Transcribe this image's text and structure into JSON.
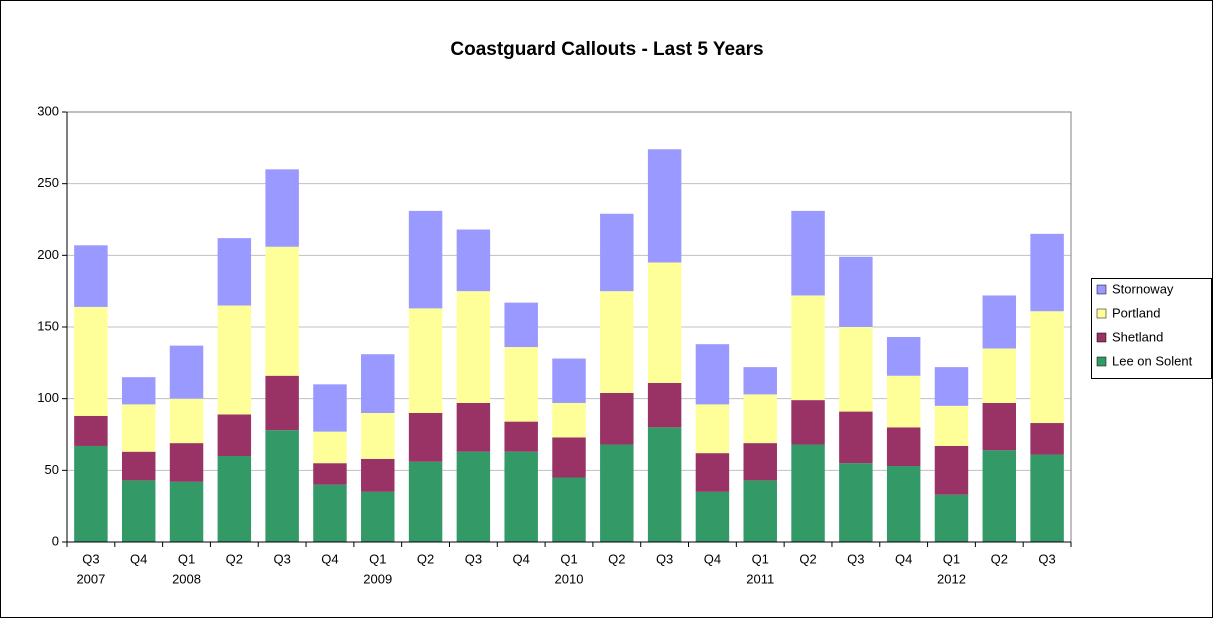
{
  "chart_data": {
    "type": "stacked_bar",
    "title": "Coastguard Callouts - Last 5 Years",
    "categories": [
      [
        "Q3",
        "2007"
      ],
      [
        "Q4"
      ],
      [
        "Q1",
        "2008"
      ],
      [
        "Q2"
      ],
      [
        "Q3"
      ],
      [
        "Q4"
      ],
      [
        "Q1",
        "2009"
      ],
      [
        "Q2"
      ],
      [
        "Q3"
      ],
      [
        "Q4"
      ],
      [
        "Q1",
        "2010"
      ],
      [
        "Q2"
      ],
      [
        "Q3"
      ],
      [
        "Q4"
      ],
      [
        "Q1",
        "2011"
      ],
      [
        "Q2"
      ],
      [
        "Q3"
      ],
      [
        "Q4"
      ],
      [
        "Q1",
        "2012"
      ],
      [
        "Q2"
      ],
      [
        "Q3"
      ]
    ],
    "series": [
      {
        "name": "Lee on Solent",
        "color": "#339966",
        "values": [
          67,
          43,
          42,
          60,
          78,
          40,
          35,
          56,
          63,
          63,
          45,
          68,
          80,
          35,
          43,
          68,
          55,
          53,
          33,
          64,
          61
        ]
      },
      {
        "name": "Shetland",
        "color": "#993366",
        "values": [
          21,
          20,
          27,
          29,
          38,
          15,
          23,
          34,
          34,
          21,
          28,
          36,
          31,
          27,
          26,
          31,
          36,
          27,
          34,
          33,
          22
        ]
      },
      {
        "name": "Portland",
        "color": "#ffff99",
        "values": [
          76,
          33,
          31,
          76,
          90,
          22,
          32,
          73,
          78,
          52,
          24,
          71,
          84,
          34,
          34,
          73,
          59,
          36,
          28,
          38,
          78
        ]
      },
      {
        "name": "Stornoway",
        "color": "#9999ff",
        "values": [
          43,
          19,
          37,
          47,
          54,
          33,
          41,
          68,
          43,
          31,
          31,
          54,
          79,
          42,
          19,
          59,
          49,
          27,
          27,
          37,
          54
        ]
      }
    ],
    "ylim": [
      0,
      300
    ],
    "yticks": [
      0,
      50,
      100,
      150,
      200,
      250,
      300
    ],
    "grid": true,
    "legend": "right"
  }
}
